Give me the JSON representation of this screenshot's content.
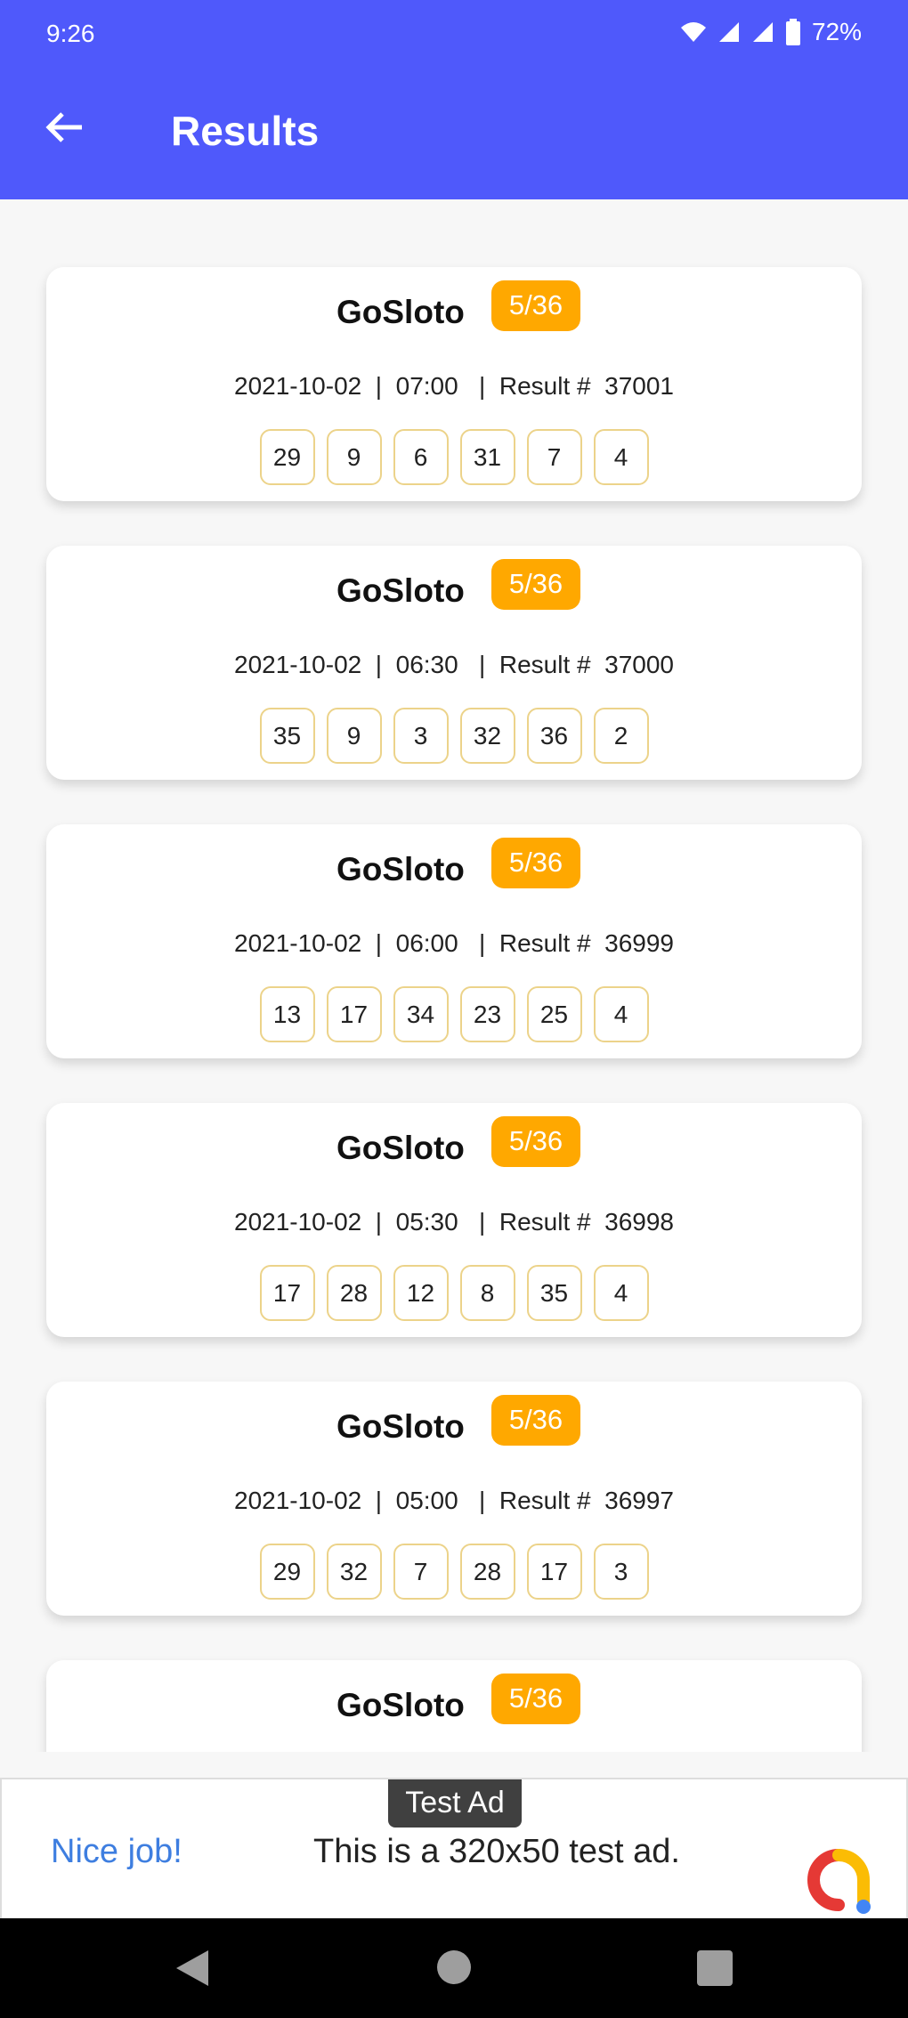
{
  "status_bar": {
    "time": "9:26",
    "battery": "72%",
    "icons": [
      "wifi-icon",
      "signal-icon",
      "signal-icon",
      "battery-icon"
    ]
  },
  "app_bar": {
    "title": "Results",
    "back_icon": "arrow-left-icon"
  },
  "colors": {
    "app_bar": "#4f59fb",
    "badge": "#ffa800",
    "number_border": "#ecd38a"
  },
  "results": [
    {
      "name": "GoSloto",
      "badge": "5/36",
      "meta": "2021-10-02  |  07:00   |  Result #  37001",
      "numbers": [
        "29",
        "9",
        "6",
        "31",
        "7",
        "4"
      ]
    },
    {
      "name": "GoSloto",
      "badge": "5/36",
      "meta": "2021-10-02  |  06:30   |  Result #  37000",
      "numbers": [
        "35",
        "9",
        "3",
        "32",
        "36",
        "2"
      ]
    },
    {
      "name": "GoSloto",
      "badge": "5/36",
      "meta": "2021-10-02  |  06:00   |  Result #  36999",
      "numbers": [
        "13",
        "17",
        "34",
        "23",
        "25",
        "4"
      ]
    },
    {
      "name": "GoSloto",
      "badge": "5/36",
      "meta": "2021-10-02  |  05:30   |  Result #  36998",
      "numbers": [
        "17",
        "28",
        "12",
        "8",
        "35",
        "4"
      ]
    },
    {
      "name": "GoSloto",
      "badge": "5/36",
      "meta": "2021-10-02  |  05:00   |  Result #  36997",
      "numbers": [
        "29",
        "32",
        "7",
        "28",
        "17",
        "3"
      ]
    },
    {
      "name": "GoSloto",
      "badge": "5/36"
    }
  ],
  "ad": {
    "tag": "Test Ad",
    "headline": "Nice job!",
    "text": "This is a 320x50 test ad."
  }
}
